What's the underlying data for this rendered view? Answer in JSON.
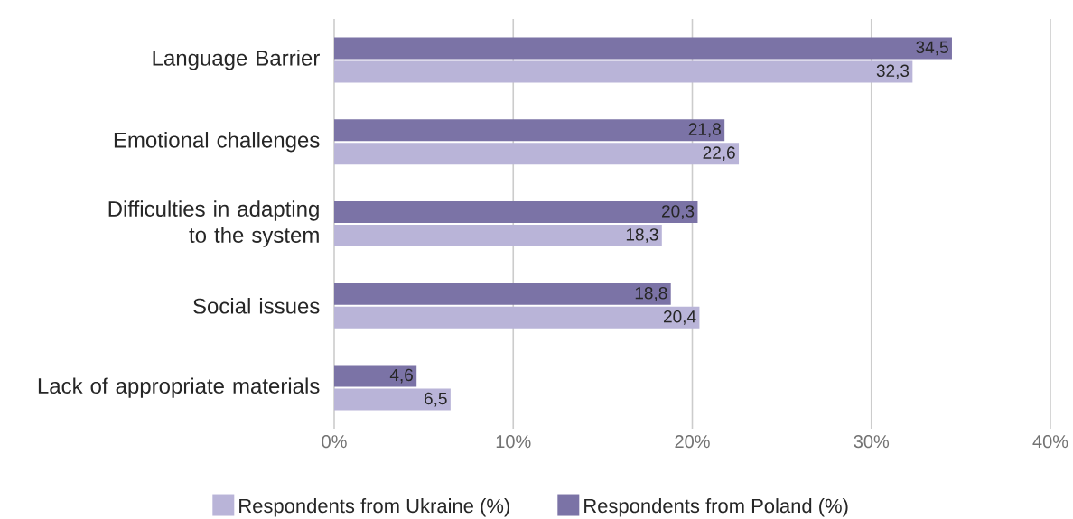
{
  "chart_data": {
    "type": "bar",
    "orientation": "horizontal",
    "categories": [
      "Language Barrier",
      "Emotional challenges",
      "Difficulties in adapting to the system",
      "Social issues",
      "Lack of appropriate materials"
    ],
    "series": [
      {
        "name": "Respondents from Ukraine (%)",
        "color": "#b9b4d8",
        "values": [
          32.3,
          22.6,
          18.3,
          20.4,
          6.5
        ],
        "value_labels": [
          "32,3",
          "22,6",
          "18,3",
          "20,4",
          "6,5"
        ]
      },
      {
        "name": "Respondents from Poland (%)",
        "color": "#7b73a6",
        "values": [
          34.5,
          21.8,
          20.3,
          18.8,
          4.6
        ],
        "value_labels": [
          "34,5",
          "21,8",
          "20,3",
          "18,8",
          "4,6"
        ]
      }
    ],
    "xlim": [
      0,
      40
    ],
    "xticks": [
      {
        "value": 0,
        "label": "0%"
      },
      {
        "value": 10,
        "label": "10%"
      },
      {
        "value": 20,
        "label": "20%"
      },
      {
        "value": 30,
        "label": "30%"
      },
      {
        "value": 40,
        "label": "40%"
      }
    ],
    "grid": "x",
    "legend": "bottom"
  }
}
